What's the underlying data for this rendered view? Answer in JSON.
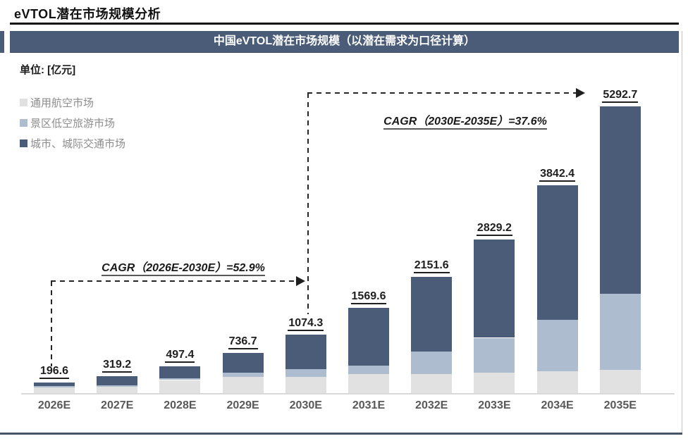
{
  "page": {
    "title": "eVTOL潜在市场规模分析",
    "banner_title": "中国eVTOL潜在市场规模（以潜在需求为口径计算）",
    "unit_label": "单位: [亿元]"
  },
  "legend": [
    {
      "label": "通用航空市场",
      "color": "#e1e1e1"
    },
    {
      "label": "景区低空旅游市场",
      "color": "#aebccf"
    },
    {
      "label": "城市、城际交通市场",
      "color": "#4a5c77"
    }
  ],
  "annotations": {
    "cagr_1": "CAGR（2026E-2030E）=52.9%",
    "cagr_2": "CAGR（2030E-2035E）=37.6%"
  },
  "chart_data": {
    "type": "bar",
    "stacked": true,
    "title": "中国eVTOL潜在市场规模（以潜在需求为口径计算）",
    "unit": "亿元",
    "categories": [
      "2026E",
      "2027E",
      "2028E",
      "2029E",
      "2030E",
      "2031E",
      "2032E",
      "2033E",
      "2034E",
      "2035E"
    ],
    "totals": [
      196.6,
      319.2,
      497.4,
      736.7,
      1074.3,
      1569.6,
      2151.6,
      2829.2,
      3842.4,
      5292.7
    ],
    "series": [
      {
        "name": "通用航空市场",
        "color": "#e1e1e1",
        "values": [
          105.0,
          118.0,
          240.0,
          295.0,
          300.0,
          350.0,
          355.0,
          380.0,
          405.0,
          435.0
        ]
      },
      {
        "name": "景区低空旅游市场",
        "color": "#aebccf",
        "values": [
          20.0,
          25.0,
          34.0,
          80.0,
          140.0,
          160.0,
          415.0,
          640.0,
          950.0,
          1400.0
        ]
      },
      {
        "name": "城市、城际交通市场",
        "color": "#4a5c77",
        "values": [
          71.6,
          176.2,
          223.4,
          361.7,
          634.3,
          1059.6,
          1381.6,
          1809.2,
          2487.4,
          3457.7
        ]
      }
    ],
    "ylim": [
      0,
      5500
    ],
    "grid": false,
    "legend_position": "top-left",
    "cagr_2026E_2030E": "52.9%",
    "cagr_2030E_2035E": "37.6%"
  }
}
